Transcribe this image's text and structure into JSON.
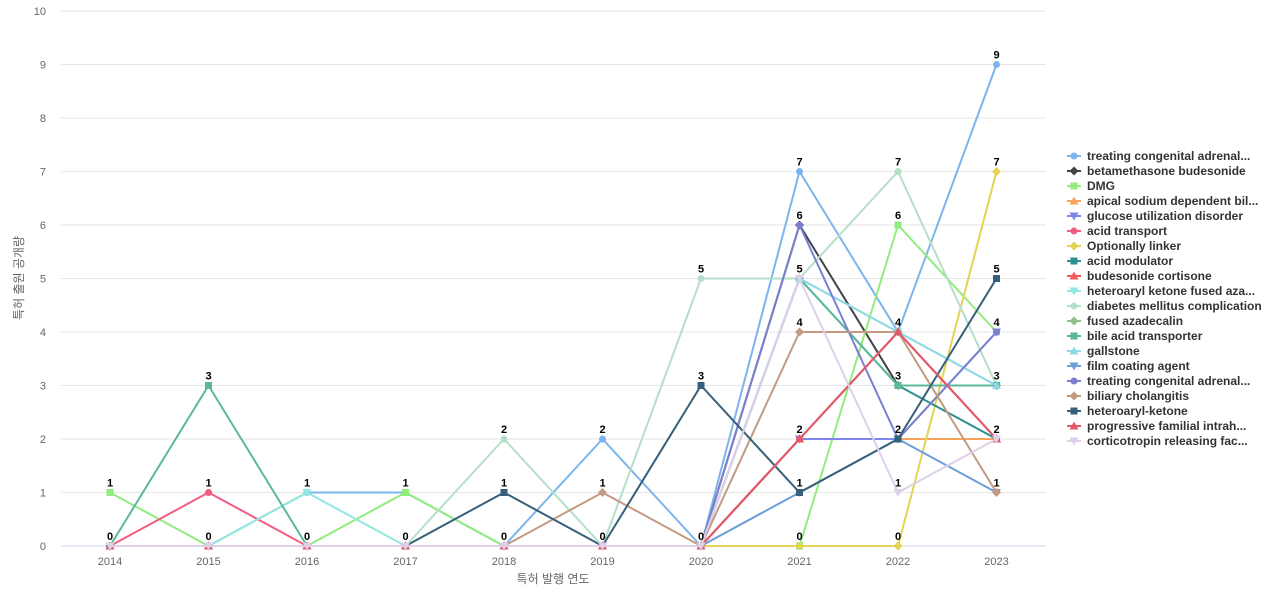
{
  "chart_data": {
    "type": "line",
    "xlabel": "특허 발행 연도",
    "ylabel": "특허 출원 공개량",
    "ylim": [
      0,
      10
    ],
    "yticks": [
      "0",
      "1",
      "2",
      "3",
      "4",
      "5",
      "6",
      "7",
      "8",
      "9",
      "10"
    ],
    "categories": [
      "2014",
      "2015",
      "2016",
      "2017",
      "2018",
      "2019",
      "2020",
      "2021",
      "2022",
      "2023"
    ],
    "grid": true,
    "legend_position": "right",
    "series": [
      {
        "name": "treating congenital adrenal...",
        "color": "#7cb5ec",
        "marker": "circle",
        "values": [
          0,
          0,
          1,
          1,
          0,
          2,
          0,
          7,
          4,
          9
        ]
      },
      {
        "name": "betamethasone budesonide",
        "color": "#434348",
        "marker": "diamond",
        "values": [
          0,
          0,
          0,
          0,
          0,
          0,
          0,
          6,
          3,
          3
        ]
      },
      {
        "name": "DMG",
        "color": "#90ed7d",
        "marker": "square",
        "values": [
          1,
          0,
          0,
          1,
          0,
          0,
          0,
          0,
          6,
          4
        ]
      },
      {
        "name": "apical sodium dependent bil...",
        "color": "#f7a35c",
        "marker": "triangle",
        "values": [
          0,
          0,
          0,
          0,
          0,
          0,
          0,
          2,
          2,
          2
        ]
      },
      {
        "name": "glucose utilization disorder",
        "color": "#8085e9",
        "marker": "triangle-down",
        "values": [
          0,
          0,
          0,
          0,
          0,
          0,
          0,
          2,
          2,
          4
        ]
      },
      {
        "name": "acid transport",
        "color": "#f15c80",
        "marker": "circle",
        "values": [
          0,
          1,
          0,
          0,
          0,
          0,
          0,
          2,
          4,
          2
        ]
      },
      {
        "name": "Optionally linker",
        "color": "#e4d354",
        "marker": "diamond",
        "values": [
          0,
          0,
          0,
          0,
          0,
          0,
          0,
          0,
          0,
          7
        ]
      },
      {
        "name": "acid modulator",
        "color": "#2b908f",
        "marker": "square",
        "values": [
          0,
          0,
          0,
          0,
          0,
          0,
          0,
          5,
          3,
          2
        ]
      },
      {
        "name": "budesonide cortisone",
        "color": "#f45b5b",
        "marker": "triangle",
        "values": [
          0,
          0,
          0,
          0,
          0,
          0,
          0,
          2,
          4,
          2
        ]
      },
      {
        "name": "heteroaryl ketone fused aza...",
        "color": "#91e8e1",
        "marker": "triangle-down",
        "values": [
          0,
          0,
          1,
          0,
          0,
          0,
          0,
          5,
          4,
          3
        ]
      },
      {
        "name": "diabetes mellitus complication",
        "color": "#b5dfc9",
        "marker": "circle",
        "values": [
          0,
          0,
          0,
          0,
          2,
          0,
          5,
          5,
          7,
          3
        ]
      },
      {
        "name": "fused azadecalin",
        "color": "#8cbf8c",
        "marker": "diamond",
        "values": [
          0,
          0,
          0,
          0,
          0,
          0,
          0,
          5,
          3,
          3
        ]
      },
      {
        "name": "bile acid transporter",
        "color": "#5bb89a",
        "marker": "square",
        "values": [
          0,
          3,
          0,
          0,
          0,
          0,
          0,
          5,
          3,
          3
        ]
      },
      {
        "name": "gallstone",
        "color": "#8fd8e8",
        "marker": "triangle",
        "values": [
          0,
          0,
          0,
          0,
          0,
          0,
          0,
          5,
          4,
          3
        ]
      },
      {
        "name": "film coating agent",
        "color": "#6a9fd8",
        "marker": "triangle-down",
        "values": [
          0,
          0,
          0,
          0,
          0,
          0,
          0,
          1,
          2,
          1
        ]
      },
      {
        "name": "treating congenital adrenal...",
        "color": "#7a7fd0",
        "marker": "circle",
        "values": [
          0,
          0,
          0,
          0,
          0,
          0,
          0,
          6,
          2,
          4
        ]
      },
      {
        "name": "biliary cholangitis",
        "color": "#c49a82",
        "marker": "diamond",
        "values": [
          0,
          0,
          0,
          0,
          0,
          1,
          0,
          4,
          4,
          1
        ]
      },
      {
        "name": "heteroaryl-ketone",
        "color": "#355f7a",
        "marker": "square",
        "values": [
          0,
          0,
          0,
          0,
          1,
          0,
          3,
          1,
          2,
          5
        ]
      },
      {
        "name": "progressive familial intrah...",
        "color": "#e05a6a",
        "marker": "triangle",
        "values": [
          0,
          0,
          0,
          0,
          0,
          0,
          0,
          2,
          4,
          2
        ]
      },
      {
        "name": "corticotropin releasing fac...",
        "color": "#e0cfe8",
        "marker": "triangle-down",
        "values": [
          0,
          0,
          0,
          0,
          0,
          0,
          0,
          5,
          1,
          2
        ]
      }
    ],
    "point_labels": [
      {
        "category": "2014",
        "value": 1,
        "text": "1"
      },
      {
        "category": "2014",
        "value": 0,
        "text": "0"
      },
      {
        "category": "2015",
        "value": 3,
        "text": "3"
      },
      {
        "category": "2015",
        "value": 1,
        "text": "1"
      },
      {
        "category": "2015",
        "value": 0,
        "text": "0"
      },
      {
        "category": "2016",
        "value": 1,
        "text": "1"
      },
      {
        "category": "2016",
        "value": 0,
        "text": "0"
      },
      {
        "category": "2017",
        "value": 1,
        "text": "1"
      },
      {
        "category": "2017",
        "value": 0,
        "text": "0"
      },
      {
        "category": "2018",
        "value": 2,
        "text": "2"
      },
      {
        "category": "2018",
        "value": 1,
        "text": "1"
      },
      {
        "category": "2018",
        "value": 0,
        "text": "0"
      },
      {
        "category": "2019",
        "value": 2,
        "text": "2"
      },
      {
        "category": "2019",
        "value": 1,
        "text": "1"
      },
      {
        "category": "2019",
        "value": 0,
        "text": "0"
      },
      {
        "category": "2020",
        "value": 5,
        "text": "5"
      },
      {
        "category": "2020",
        "value": 3,
        "text": "3"
      },
      {
        "category": "2020",
        "value": 0,
        "text": "0"
      },
      {
        "category": "2021",
        "value": 7,
        "text": "7"
      },
      {
        "category": "2021",
        "value": 6,
        "text": "6"
      },
      {
        "category": "2021",
        "value": 5,
        "text": "5"
      },
      {
        "category": "2021",
        "value": 4,
        "text": "4"
      },
      {
        "category": "2021",
        "value": 2,
        "text": "2"
      },
      {
        "category": "2021",
        "value": 1,
        "text": "1"
      },
      {
        "category": "2021",
        "value": 0,
        "text": "0"
      },
      {
        "category": "2022",
        "value": 7,
        "text": "7"
      },
      {
        "category": "2022",
        "value": 6,
        "text": "6"
      },
      {
        "category": "2022",
        "value": 4,
        "text": "4"
      },
      {
        "category": "2022",
        "value": 3,
        "text": "3"
      },
      {
        "category": "2022",
        "value": 2,
        "text": "2"
      },
      {
        "category": "2022",
        "value": 1,
        "text": "1"
      },
      {
        "category": "2022",
        "value": 0,
        "text": "0"
      },
      {
        "category": "2023",
        "value": 9,
        "text": "9"
      },
      {
        "category": "2023",
        "value": 7,
        "text": "7"
      },
      {
        "category": "2023",
        "value": 5,
        "text": "5"
      },
      {
        "category": "2023",
        "value": 4,
        "text": "4"
      },
      {
        "category": "2023",
        "value": 3,
        "text": "3"
      },
      {
        "category": "2023",
        "value": 2,
        "text": "2"
      },
      {
        "category": "2023",
        "value": 1,
        "text": "1"
      }
    ]
  }
}
